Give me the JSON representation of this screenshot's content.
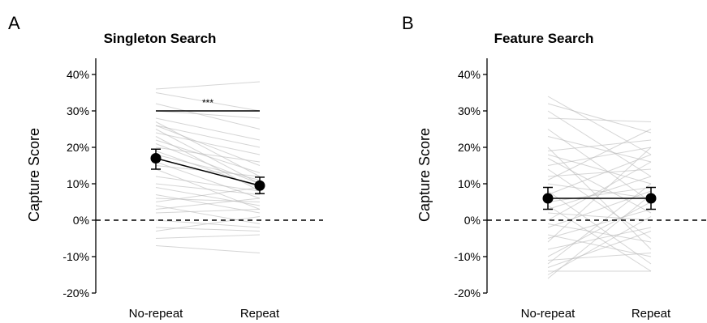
{
  "chart_data": [
    {
      "panel": "A",
      "type": "line",
      "title": "Singleton Search",
      "ylabel": "Capture Score",
      "xlabel": "",
      "categories": [
        "No-repeat",
        "Repeat"
      ],
      "ylim": [
        -20,
        40
      ],
      "yticks": [
        -20,
        -10,
        0,
        10,
        20,
        30,
        40
      ],
      "ytick_labels": [
        "-20%",
        "-10%",
        "0%",
        "10%",
        "20%",
        "30%",
        "40%"
      ],
      "reference_line": {
        "y": 0,
        "style": "dashed"
      },
      "means": [
        17,
        9.5
      ],
      "error_low": [
        14,
        7.3
      ],
      "error_high": [
        19.5,
        11.8
      ],
      "significance": {
        "label": "***",
        "y": 30
      },
      "participants": [
        [
          36,
          38
        ],
        [
          35,
          30
        ],
        [
          32,
          25
        ],
        [
          30,
          28
        ],
        [
          28,
          22
        ],
        [
          27,
          12
        ],
        [
          26,
          20
        ],
        [
          26,
          15
        ],
        [
          25,
          10
        ],
        [
          24,
          18
        ],
        [
          23,
          8
        ],
        [
          22,
          13
        ],
        [
          21,
          10
        ],
        [
          20,
          16
        ],
        [
          19,
          9
        ],
        [
          18,
          11
        ],
        [
          16,
          6
        ],
        [
          15,
          12
        ],
        [
          14,
          3
        ],
        [
          12,
          8
        ],
        [
          10,
          7
        ],
        [
          9,
          4
        ],
        [
          7,
          2
        ],
        [
          6,
          5
        ],
        [
          5,
          9
        ],
        [
          4,
          -1
        ],
        [
          3,
          6
        ],
        [
          2,
          3
        ],
        [
          0,
          -2
        ],
        [
          -2,
          -3
        ],
        [
          -3,
          1
        ],
        [
          -5,
          -4
        ],
        [
          -7,
          -9
        ]
      ]
    },
    {
      "panel": "B",
      "type": "line",
      "title": "Feature Search",
      "ylabel": "Capture Score",
      "xlabel": "",
      "categories": [
        "No-repeat",
        "Repeat"
      ],
      "ylim": [
        -20,
        40
      ],
      "yticks": [
        -20,
        -10,
        0,
        10,
        20,
        30,
        40
      ],
      "ytick_labels": [
        "-20%",
        "-10%",
        "0%",
        "10%",
        "20%",
        "30%",
        "40%"
      ],
      "reference_line": {
        "y": 0,
        "style": "dashed"
      },
      "means": [
        6,
        6
      ],
      "error_low": [
        3,
        3
      ],
      "error_high": [
        9,
        9
      ],
      "participants": [
        [
          34,
          18
        ],
        [
          32,
          24
        ],
        [
          30,
          12
        ],
        [
          28,
          27
        ],
        [
          25,
          5
        ],
        [
          23,
          16
        ],
        [
          20,
          -8
        ],
        [
          19,
          22
        ],
        [
          18,
          10
        ],
        [
          17,
          2
        ],
        [
          15,
          20
        ],
        [
          14,
          -5
        ],
        [
          12,
          14
        ],
        [
          11,
          25
        ],
        [
          10,
          6
        ],
        [
          8,
          -12
        ],
        [
          7,
          18
        ],
        [
          5,
          9
        ],
        [
          4,
          -14
        ],
        [
          3,
          12
        ],
        [
          2,
          0
        ],
        [
          0,
          16
        ],
        [
          -1,
          -6
        ],
        [
          -2,
          8
        ],
        [
          -4,
          -10
        ],
        [
          -5,
          3
        ],
        [
          -6,
          20
        ],
        [
          -8,
          -2
        ],
        [
          -10,
          5
        ],
        [
          -11,
          -9
        ],
        [
          -12,
          10
        ],
        [
          -13,
          -3
        ],
        [
          -14,
          -14
        ],
        [
          -15,
          1
        ],
        [
          -16,
          7
        ]
      ]
    }
  ]
}
